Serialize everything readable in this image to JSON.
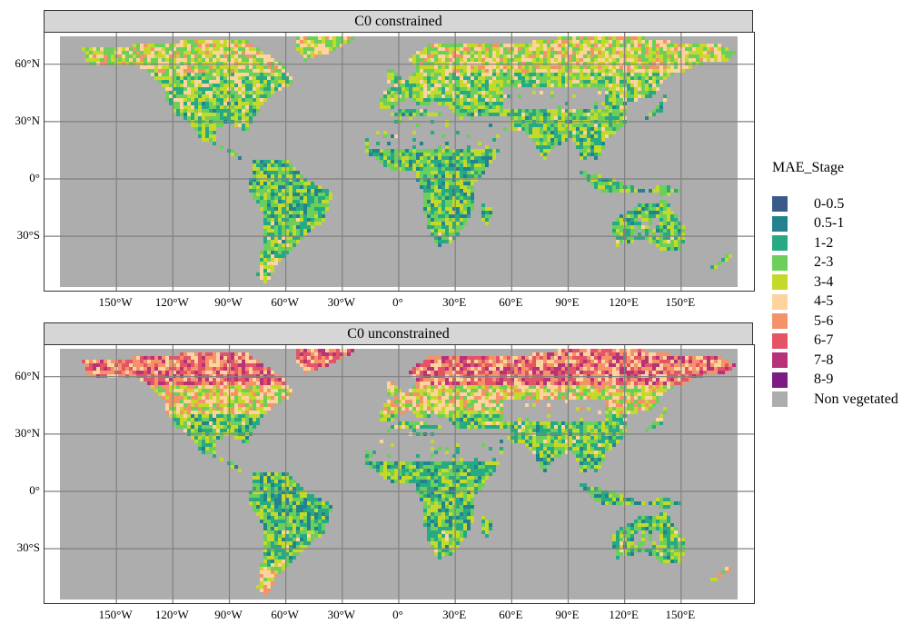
{
  "panels": [
    {
      "title": "C0 constrained"
    },
    {
      "title": "C0 unconstrained"
    }
  ],
  "y_axis_labels": [
    "60°N",
    "30°N",
    "0°",
    "30°S"
  ],
  "x_axis_labels": [
    "150°W",
    "120°W",
    "90°W",
    "60°W",
    "30°W",
    "0°",
    "30°E",
    "60°E",
    "90°E",
    "120°E",
    "150°E"
  ],
  "legend": {
    "title": "MAE_Stage",
    "items": [
      {
        "label": "0-0.5",
        "color": "#3b5a8c"
      },
      {
        "label": "0.5-1",
        "color": "#24828e"
      },
      {
        "label": "1-2",
        "color": "#27aa83"
      },
      {
        "label": "2-3",
        "color": "#6bcf5a"
      },
      {
        "label": "3-4",
        "color": "#c5d92a"
      },
      {
        "label": "4-5",
        "color": "#fdd49e"
      },
      {
        "label": "5-6",
        "color": "#f4936a"
      },
      {
        "label": "6-7",
        "color": "#e45466"
      },
      {
        "label": "7-8",
        "color": "#b8327a"
      },
      {
        "label": "8-9",
        "color": "#7a1c84"
      },
      {
        "label": "Non vegetated",
        "color": "#adadad"
      }
    ]
  },
  "colors": {
    "ocean": "#ffffff",
    "non_vegetated": "#adadad",
    "grid": "#808080",
    "strip": "#d6d6d6"
  }
}
